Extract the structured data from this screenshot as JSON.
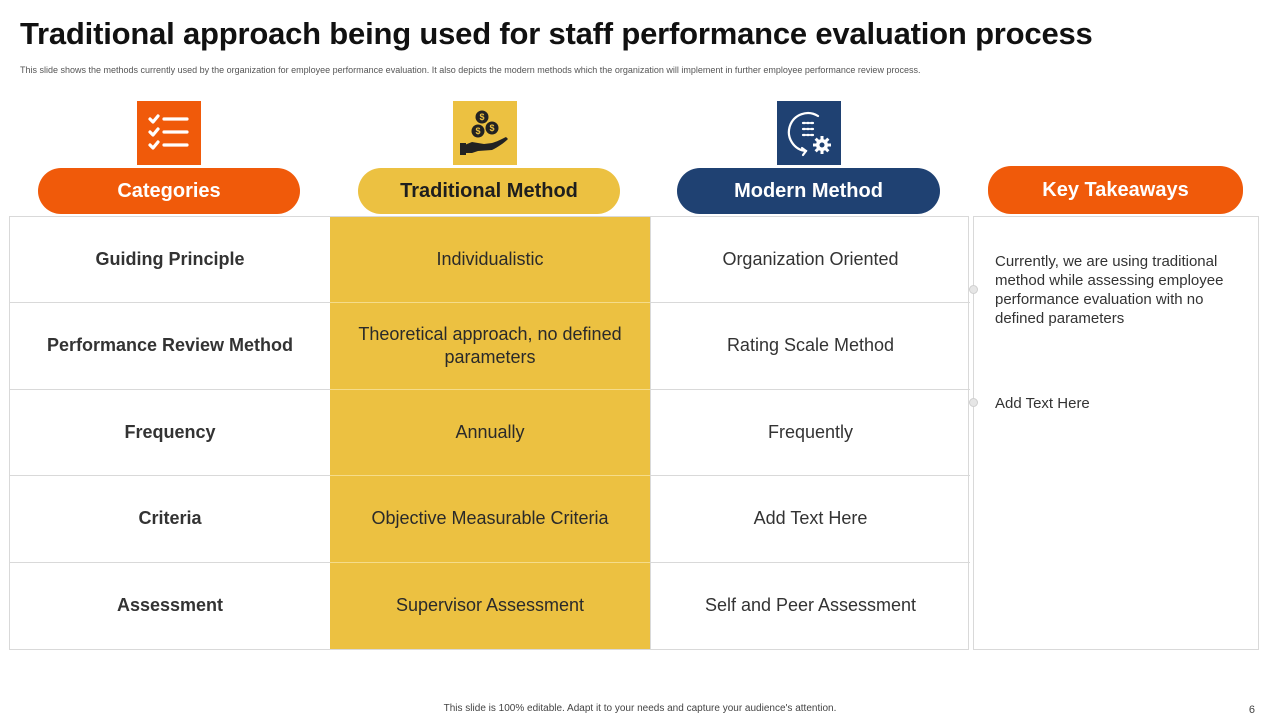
{
  "page": {
    "title": "Traditional approach being used for staff performance evaluation process",
    "subtitle": "This slide shows the methods currently used by the organization for employee performance evaluation. It also depicts the modern methods which the organization will implement in further employee performance review process.",
    "footer": "This slide is 100% editable. Adapt it to your needs and capture your audience's attention.",
    "page_number": "6"
  },
  "colors": {
    "orange": "#f05a0a",
    "yellow": "#ecc141",
    "navy": "#1f4172",
    "border": "#d9d9d9"
  },
  "headers": {
    "categories": "Categories",
    "traditional": "Traditional Method",
    "modern": "Modern Method",
    "takeaways": "Key Takeaways"
  },
  "icons": {
    "categories": "checklist-icon",
    "traditional": "coins-hand-icon",
    "modern": "process-gear-icon"
  },
  "rows": [
    {
      "category": "Guiding Principle",
      "traditional": "Individualistic",
      "modern": "Organization Oriented"
    },
    {
      "category": "Performance Review Method",
      "traditional": "Theoretical approach, no defined parameters",
      "modern": "Rating Scale Method"
    },
    {
      "category": "Frequency",
      "traditional": "Annually",
      "modern": "Frequently"
    },
    {
      "category": "Criteria",
      "traditional": "Objective Measurable Criteria",
      "modern": "Add Text Here"
    },
    {
      "category": "Assessment",
      "traditional": "Supervisor Assessment",
      "modern": "Self and Peer Assessment"
    }
  ],
  "takeaways": [
    "Currently, we are using traditional method while assessing employee performance evaluation with no defined parameters",
    "Add Text Here"
  ]
}
